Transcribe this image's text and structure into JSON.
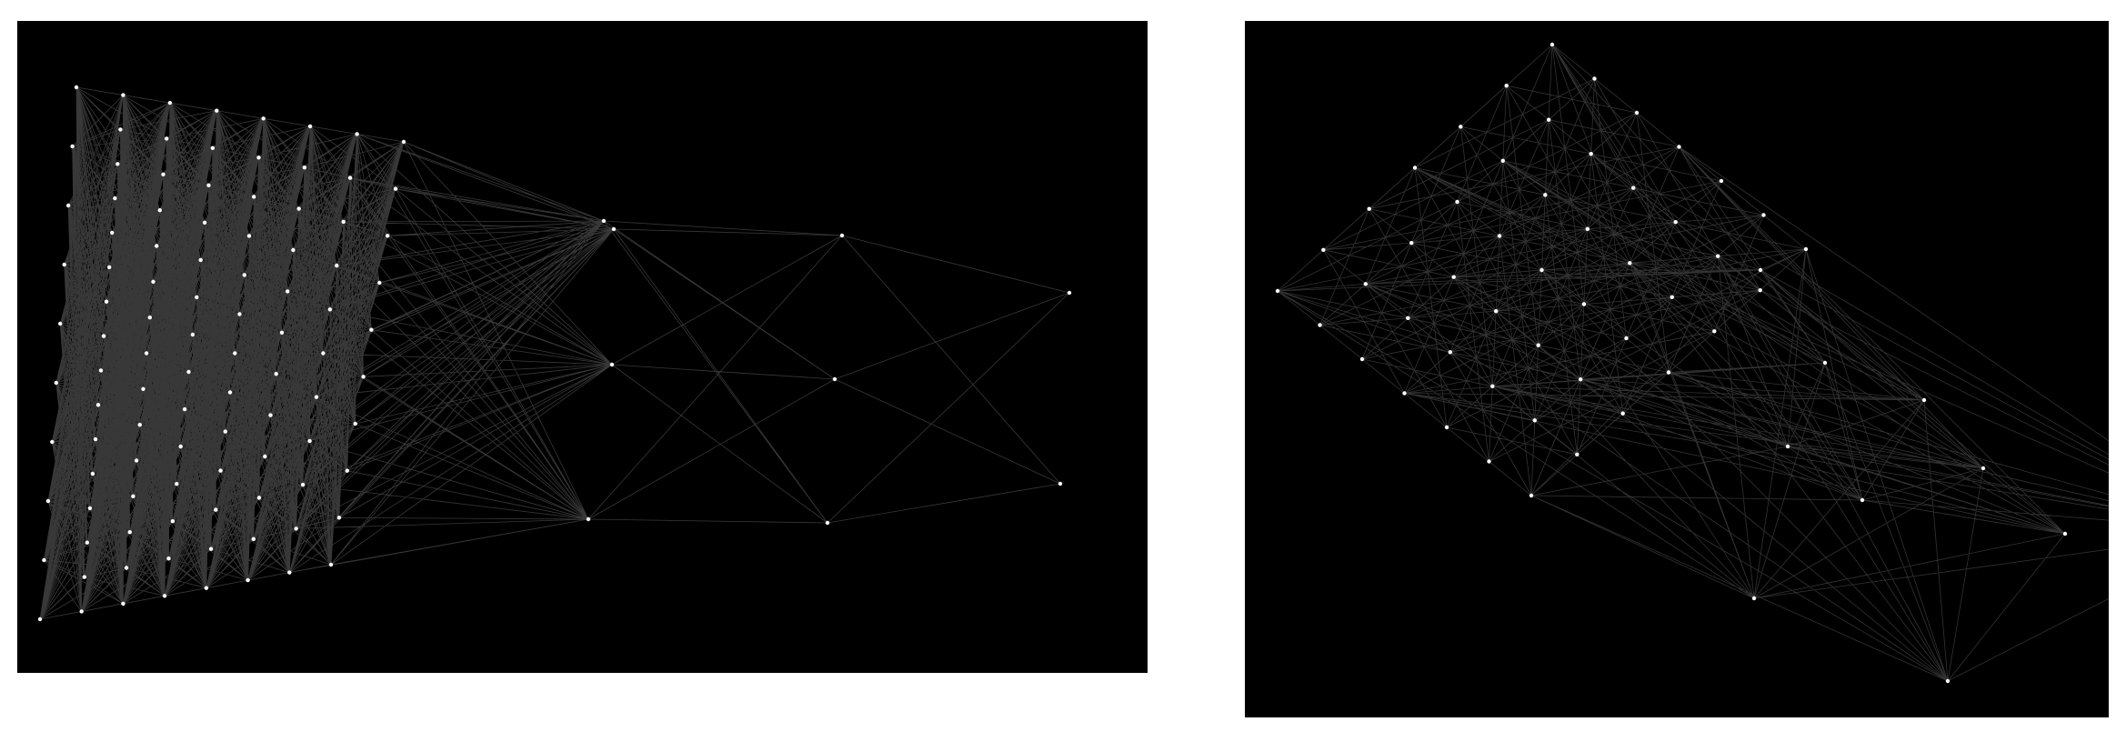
{
  "figure": {
    "panels": [
      {
        "id": "left",
        "kind": "layered-network",
        "layer_sizes": [
          10,
          16,
          15,
          14,
          13,
          12,
          11,
          10,
          3,
          3,
          2
        ],
        "background": "#000000",
        "node_color": "#ffffff",
        "edge_color": "#ffffff"
      },
      {
        "id": "right",
        "kind": "hypercube-network",
        "grid_size": 7,
        "background": "#000000",
        "node_color": "#ffffff",
        "edge_color": "#ffffff"
      }
    ]
  }
}
